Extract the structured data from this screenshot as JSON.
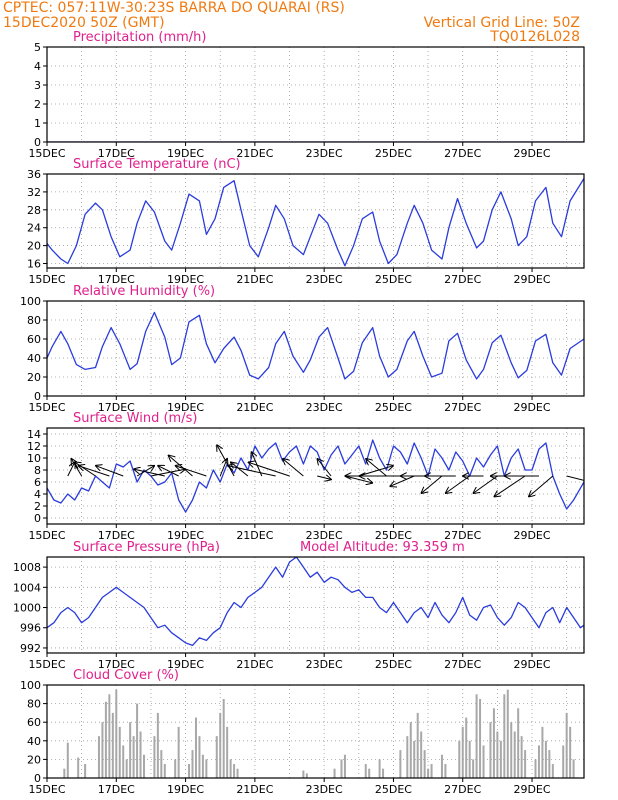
{
  "header": {
    "line1": "CPTEC:  057:11W-30:23S  BARRA DO QUARAI (RS)",
    "line2_left": "15DEC2020 50Z (GMT)",
    "line2_right": "Vertical Grid Line: 50Z",
    "line3_right": "TQ0126L028"
  },
  "colors": {
    "header": "#f07a10",
    "panel_title": "#e0208c",
    "line": "#2a3cdc",
    "bars": "#a8a8a8",
    "arrows": "#000000",
    "grid": "#9a9a9a"
  },
  "x_axis": {
    "labels": [
      "15DEC",
      "17DEC",
      "19DEC",
      "21DEC",
      "23DEC",
      "25DEC",
      "27DEC",
      "29DEC"
    ],
    "label_days": [
      0,
      2,
      4,
      6,
      8,
      10,
      12,
      14
    ],
    "range_days": [
      0,
      15.5
    ]
  },
  "chart_data": [
    {
      "type": "line",
      "title": "Precipitation (mm/h)",
      "ylim": [
        0,
        5
      ],
      "yticks": [
        0,
        1,
        2,
        3,
        4,
        5
      ],
      "series": [
        {
          "x": [
            0,
            15.5
          ],
          "y": [
            0,
            0
          ]
        }
      ]
    },
    {
      "type": "line",
      "title": "Surface Temperature (nC)",
      "ylim": [
        15,
        36
      ],
      "yticks": [
        16,
        20,
        24,
        28,
        32,
        36
      ],
      "series": [
        {
          "x": [
            0,
            0.15,
            0.4,
            0.6,
            0.85,
            1.1,
            1.4,
            1.6,
            1.85,
            2.1,
            2.4,
            2.6,
            2.85,
            3.1,
            3.4,
            3.6,
            3.85,
            4.1,
            4.4,
            4.6,
            4.85,
            5.1,
            5.4,
            5.6,
            5.85,
            6.1,
            6.4,
            6.6,
            6.85,
            7.1,
            7.4,
            7.6,
            7.85,
            8.1,
            8.4,
            8.6,
            8.85,
            9.1,
            9.4,
            9.6,
            9.85,
            10.1,
            10.4,
            10.6,
            10.85,
            11.1,
            11.4,
            11.6,
            11.85,
            12.1,
            12.4,
            12.6,
            12.85,
            13.1,
            13.4,
            13.6,
            13.85,
            14.1,
            14.4,
            14.6,
            14.85,
            15.1,
            15.5
          ],
          "y": [
            20.5,
            19,
            17,
            16,
            20,
            27,
            29.5,
            28,
            22,
            17.5,
            19,
            25,
            30,
            27.5,
            21,
            19,
            25,
            31.5,
            30,
            22.5,
            26,
            33,
            34.5,
            28,
            20,
            17.5,
            24,
            29,
            26,
            20,
            18,
            22,
            27,
            25,
            19,
            15.5,
            20,
            26,
            27.5,
            21,
            16,
            18,
            25,
            29,
            25,
            19,
            17,
            24,
            30.5,
            25,
            19.5,
            21,
            28,
            32,
            26,
            20,
            22,
            30,
            33,
            25,
            22,
            30,
            35
          ]
        }
      ]
    },
    {
      "type": "line",
      "title": "Relative Humidity (%)",
      "ylim": [
        0,
        100
      ],
      "yticks": [
        0,
        20,
        40,
        60,
        80,
        100
      ],
      "series": [
        {
          "x": [
            0,
            0.15,
            0.4,
            0.6,
            0.85,
            1.1,
            1.4,
            1.6,
            1.85,
            2.1,
            2.4,
            2.6,
            2.85,
            3.1,
            3.4,
            3.6,
            3.85,
            4.1,
            4.4,
            4.6,
            4.85,
            5.1,
            5.4,
            5.6,
            5.85,
            6.1,
            6.4,
            6.6,
            6.85,
            7.1,
            7.4,
            7.6,
            7.85,
            8.1,
            8.4,
            8.6,
            8.85,
            9.1,
            9.4,
            9.6,
            9.85,
            10.1,
            10.4,
            10.6,
            10.85,
            11.1,
            11.4,
            11.6,
            11.85,
            12.1,
            12.4,
            12.6,
            12.85,
            13.1,
            13.4,
            13.6,
            13.85,
            14.1,
            14.4,
            14.6,
            14.85,
            15.1,
            15.5
          ],
          "y": [
            40,
            52,
            68,
            55,
            33,
            28,
            30,
            52,
            72,
            55,
            28,
            34,
            68,
            88,
            62,
            33,
            40,
            78,
            85,
            55,
            35,
            50,
            62,
            48,
            22,
            18,
            30,
            55,
            68,
            42,
            25,
            38,
            62,
            72,
            40,
            18,
            26,
            56,
            72,
            42,
            20,
            28,
            58,
            68,
            42,
            20,
            24,
            58,
            66,
            38,
            18,
            28,
            56,
            64,
            35,
            19,
            27,
            58,
            65,
            35,
            22,
            50,
            60
          ]
        }
      ]
    },
    {
      "type": "line",
      "title": "Surface Wind (m/s)",
      "ylim": [
        -1,
        15
      ],
      "yticks": [
        0,
        2,
        4,
        6,
        8,
        10,
        12,
        14
      ],
      "series": [
        {
          "x": [
            0,
            0.2,
            0.4,
            0.6,
            0.8,
            1.0,
            1.2,
            1.4,
            1.6,
            1.8,
            2.0,
            2.2,
            2.4,
            2.6,
            2.8,
            3.0,
            3.2,
            3.4,
            3.6,
            3.8,
            4.0,
            4.2,
            4.4,
            4.6,
            4.8,
            5.0,
            5.2,
            5.4,
            5.6,
            5.8,
            6.0,
            6.2,
            6.4,
            6.6,
            6.8,
            7.0,
            7.2,
            7.4,
            7.6,
            7.8,
            8.0,
            8.2,
            8.4,
            8.6,
            8.8,
            9.0,
            9.2,
            9.4,
            9.6,
            9.8,
            10.0,
            10.2,
            10.4,
            10.6,
            10.8,
            11.0,
            11.2,
            11.4,
            11.6,
            11.8,
            12.0,
            12.2,
            12.4,
            12.6,
            12.8,
            13.0,
            13.2,
            13.4,
            13.6,
            13.8,
            14.0,
            14.2,
            14.4,
            14.6,
            14.8,
            15.0,
            15.2,
            15.5
          ],
          "y": [
            5,
            3,
            2.5,
            4,
            3,
            5,
            4.5,
            7,
            6,
            5,
            9,
            8.5,
            9.5,
            6,
            8,
            7,
            5.5,
            6,
            7.5,
            3,
            1,
            3,
            6,
            5,
            8,
            6,
            9,
            7.5,
            10,
            8,
            12,
            10,
            11.5,
            12.5,
            9.5,
            11,
            12,
            9,
            12,
            11,
            8,
            10.5,
            12,
            9,
            10.5,
            12,
            9,
            13,
            10,
            8,
            12,
            11,
            9,
            12.5,
            10,
            7,
            11.5,
            10,
            8,
            11,
            9.5,
            7,
            10,
            8.5,
            10.5,
            12,
            7,
            10,
            11.5,
            8,
            8,
            11.5,
            12.5,
            7,
            4,
            1.5,
            3,
            6
          ]
        }
      ]
    },
    {
      "type": "line",
      "title": "Surface Pressure (hPa)",
      "annotation": "Model Altitude: 93.359  m",
      "ylim": [
        991,
        1010
      ],
      "yticks": [
        992,
        996,
        1000,
        1004,
        1008
      ],
      "series": [
        {
          "x": [
            0,
            0.2,
            0.4,
            0.6,
            0.8,
            1.0,
            1.2,
            1.4,
            1.6,
            1.8,
            2.0,
            2.2,
            2.4,
            2.6,
            2.8,
            3.0,
            3.2,
            3.4,
            3.6,
            3.8,
            4.0,
            4.2,
            4.4,
            4.6,
            4.8,
            5.0,
            5.2,
            5.4,
            5.6,
            5.8,
            6.0,
            6.2,
            6.4,
            6.6,
            6.8,
            7.0,
            7.2,
            7.4,
            7.6,
            7.8,
            8.0,
            8.2,
            8.4,
            8.6,
            8.8,
            9.0,
            9.2,
            9.4,
            9.6,
            9.8,
            10.0,
            10.2,
            10.4,
            10.6,
            10.8,
            11.0,
            11.2,
            11.4,
            11.6,
            11.8,
            12.0,
            12.2,
            12.4,
            12.6,
            12.8,
            13.0,
            13.2,
            13.4,
            13.6,
            13.8,
            14.0,
            14.2,
            14.4,
            14.6,
            14.8,
            15.0,
            15.2,
            15.4,
            15.5
          ],
          "y": [
            996,
            997,
            999,
            1000,
            999,
            997,
            998,
            1000,
            1002,
            1003,
            1004,
            1003,
            1002,
            1001,
            1000,
            998,
            996,
            996.5,
            995,
            994,
            993,
            992.5,
            994,
            993.5,
            995,
            996,
            999,
            1001,
            1000,
            1002,
            1003,
            1004,
            1006,
            1008,
            1006,
            1009,
            1010,
            1008,
            1006,
            1007,
            1005,
            1006,
            1005.5,
            1004,
            1003,
            1003.5,
            1002,
            1002,
            1000,
            999,
            1001,
            999,
            997,
            999,
            1000,
            998,
            1001,
            998.5,
            997,
            999,
            1002,
            998.5,
            997.5,
            1000,
            1000.5,
            998,
            996.5,
            998,
            1001,
            1000,
            998,
            996,
            999,
            1000,
            997,
            1000,
            998,
            996,
            996.5
          ]
        }
      ]
    },
    {
      "type": "bar",
      "title": "Cloud Cover (%)",
      "ylim": [
        0,
        100
      ],
      "yticks": [
        0,
        20,
        40,
        60,
        80,
        100
      ],
      "series": [
        {
          "x": [
            0.5,
            0.6,
            0.9,
            1.1,
            1.5,
            1.6,
            1.7,
            1.8,
            1.9,
            2.0,
            2.1,
            2.2,
            2.3,
            2.4,
            2.5,
            2.6,
            2.7,
            2.8,
            3.1,
            3.2,
            3.3,
            3.4,
            3.7,
            3.8,
            4.1,
            4.2,
            4.3,
            4.4,
            4.5,
            4.6,
            4.9,
            5.0,
            5.1,
            5.2,
            5.3,
            5.4,
            5.5,
            7.4,
            7.5,
            8.3,
            8.5,
            8.6,
            9.2,
            9.3,
            9.6,
            9.7,
            10.2,
            10.4,
            10.5,
            10.6,
            10.7,
            10.8,
            10.9,
            11.0,
            11.1,
            11.4,
            11.5,
            11.9,
            12.0,
            12.1,
            12.2,
            12.3,
            12.4,
            12.5,
            12.6,
            12.8,
            12.9,
            13.0,
            13.1,
            13.2,
            13.3,
            13.4,
            13.5,
            13.6,
            13.7,
            13.8,
            14.1,
            14.2,
            14.3,
            14.4,
            14.5,
            14.6,
            14.9,
            15.0,
            15.1,
            15.2
          ],
          "y": [
            10,
            38,
            22,
            15,
            45,
            60,
            82,
            90,
            70,
            95,
            55,
            35,
            20,
            60,
            45,
            80,
            50,
            25,
            45,
            70,
            30,
            15,
            20,
            55,
            15,
            30,
            65,
            45,
            25,
            20,
            45,
            70,
            85,
            55,
            20,
            15,
            10,
            8,
            5,
            10,
            20,
            25,
            15,
            10,
            20,
            10,
            30,
            45,
            60,
            40,
            70,
            50,
            30,
            10,
            15,
            25,
            15,
            40,
            55,
            65,
            40,
            20,
            90,
            85,
            35,
            60,
            75,
            50,
            40,
            90,
            95,
            60,
            50,
            75,
            45,
            30,
            20,
            35,
            55,
            40,
            30,
            15,
            35,
            70,
            55,
            20
          ]
        }
      ]
    }
  ],
  "wind_vectors": {
    "x": [
      0.6,
      1.0,
      1.4,
      1.8,
      2.2,
      2.6,
      3.0,
      3.4,
      3.8,
      4.2,
      4.6,
      5.0,
      5.4,
      5.8,
      6.2,
      6.6,
      7.0,
      7.4,
      7.8,
      8.2,
      8.6,
      9.0,
      9.4,
      9.8,
      10.2,
      10.6,
      11.0,
      11.4,
      11.8,
      12.2,
      12.6,
      13.0,
      13.4,
      13.8,
      14.2,
      14.6,
      15.0
    ],
    "u": [
      0.2,
      -0.3,
      -0.6,
      -0.9,
      -0.8,
      0.5,
      1.0,
      -0.9,
      -0.6,
      -0.7,
      -0.9,
      0.2,
      -0.5,
      -0.5,
      -0.3,
      -1.4,
      -1.2,
      -0.6,
      0.4,
      -0.4,
      0.8,
      1.0,
      -0.8,
      -0.6,
      -1.2,
      -0.7,
      -0.8,
      -0.6,
      -0.9,
      -0.7,
      -0.6,
      -0.7,
      -0.6,
      -0.9,
      -1.0,
      -0.7,
      0.8
    ],
    "v": [
      0.4,
      0.5,
      0.4,
      0.3,
      0.3,
      0.3,
      0.2,
      0.2,
      0.3,
      0.6,
      0.3,
      0.5,
      0.9,
      0.4,
      0.7,
      0.3,
      0.4,
      0.5,
      -0.1,
      0.5,
      -0.2,
      0.3,
      0.0,
      0.5,
      0.0,
      -0.3,
      0.0,
      -0.5,
      0.0,
      -0.5,
      0.0,
      -0.5,
      0.0,
      -0.6,
      0.0,
      -0.6,
      -0.2
    ]
  }
}
